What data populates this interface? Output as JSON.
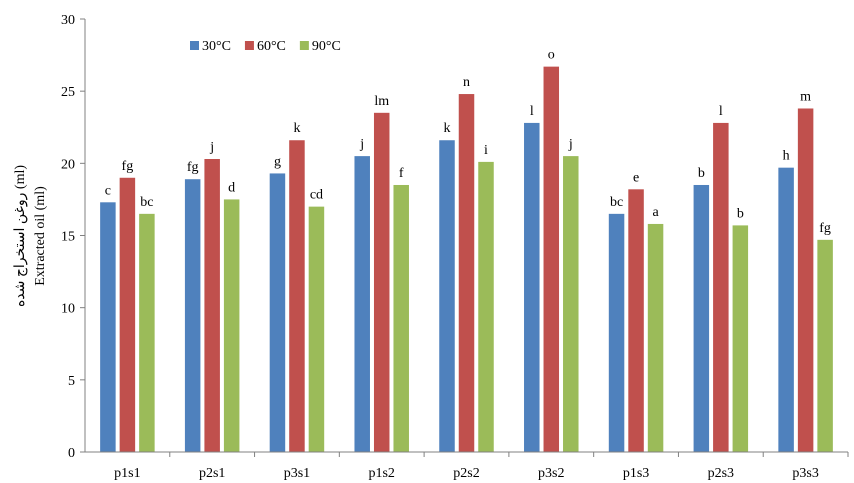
{
  "chart_data": {
    "type": "bar",
    "categories": [
      "p1s1",
      "p2s1",
      "p3s1",
      "p1s2",
      "p2s2",
      "p3s2",
      "p1s3",
      "p2s3",
      "p3s3"
    ],
    "series": [
      {
        "name": "30°C",
        "color": "#4F81BD",
        "values": [
          17.3,
          18.9,
          19.3,
          20.5,
          21.6,
          22.8,
          16.5,
          18.5,
          19.7
        ],
        "labels": [
          "c",
          "fg",
          "g",
          "j",
          "k",
          "l",
          "bc",
          "b",
          "h"
        ]
      },
      {
        "name": "60°C",
        "color": "#C0504D",
        "values": [
          19.0,
          20.3,
          21.6,
          23.5,
          24.8,
          26.7,
          18.2,
          22.8,
          23.8
        ],
        "labels": [
          "fg",
          "j",
          "k",
          "lm",
          "n",
          "o",
          "e",
          "l",
          "m"
        ]
      },
      {
        "name": "90°C",
        "color": "#9BBB59",
        "values": [
          16.5,
          17.5,
          17.0,
          18.5,
          20.1,
          20.5,
          15.8,
          15.7,
          14.7
        ],
        "labels": [
          "bc",
          "d",
          "cd",
          "f",
          "i",
          "j",
          "a",
          "b",
          "fg"
        ]
      }
    ],
    "ylabel_line1": "روغن استخراج شده (ml)",
    "ylabel_line2": "Extracted oil (ml)",
    "ylim": [
      0,
      30
    ],
    "yticks": [
      "0",
      "5",
      "10",
      "15",
      "20",
      "25",
      "30"
    ],
    "grid": false,
    "legend_position": "top-left"
  }
}
